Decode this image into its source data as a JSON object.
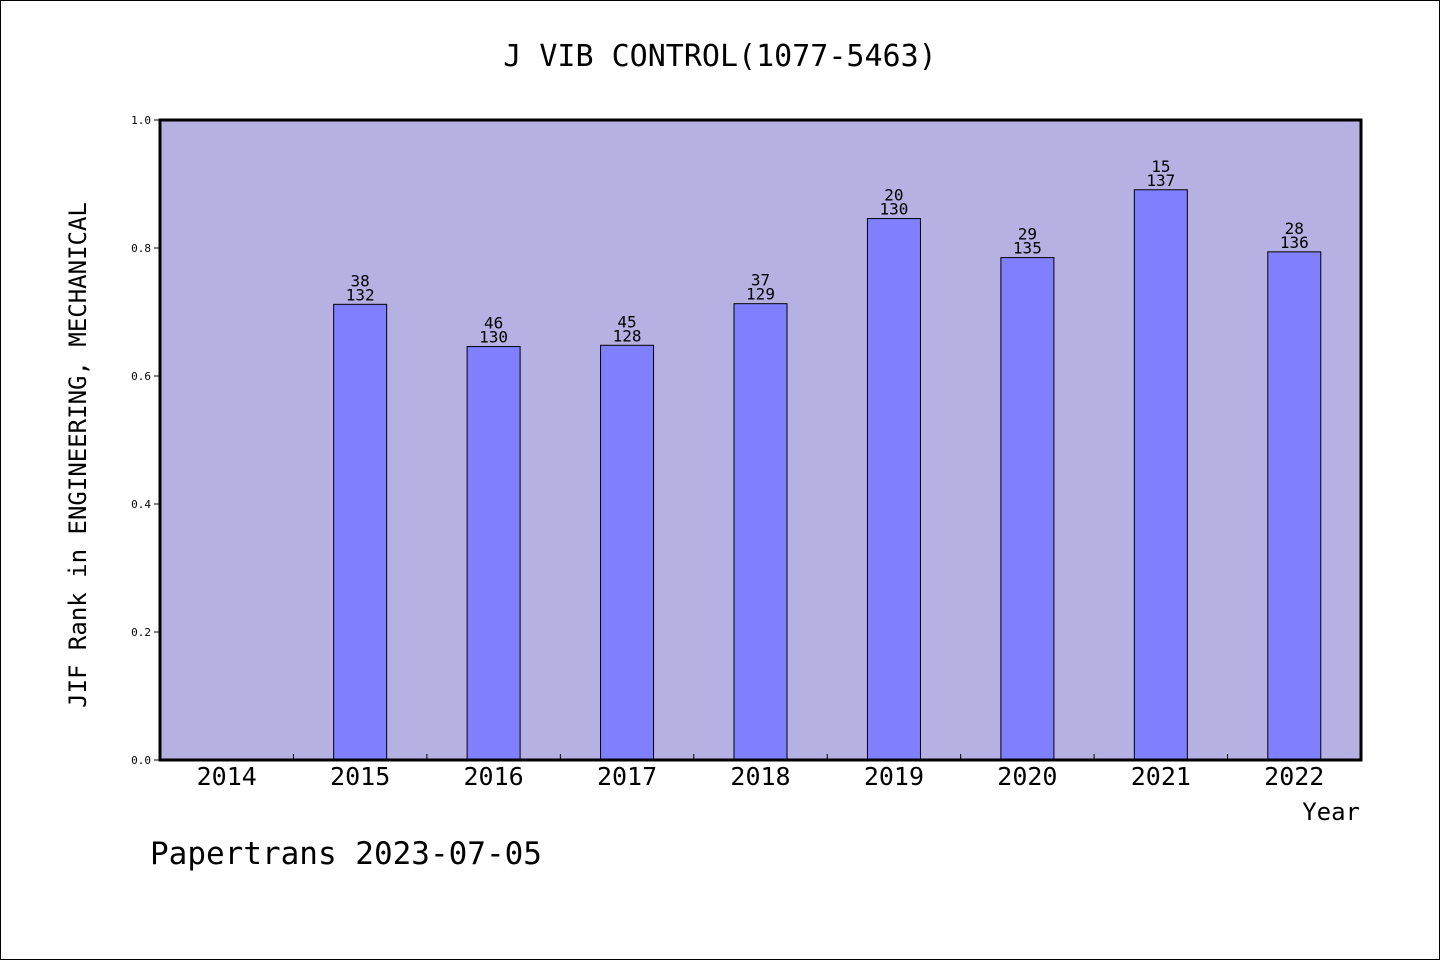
{
  "chart_data": {
    "type": "bar",
    "title": "J VIB CONTROL(1077-5463)",
    "xlabel": "Year",
    "ylabel": "JIF Rank in ENGINEERING, MECHANICAL",
    "ylim": [
      0,
      1.0
    ],
    "yticks": [
      "0.0",
      "0.2",
      "0.4",
      "0.6",
      "0.8",
      "1.0"
    ],
    "categories": [
      "2014",
      "2015",
      "2016",
      "2017",
      "2018",
      "2019",
      "2020",
      "2021",
      "2022"
    ],
    "values": [
      null,
      0.712,
      0.646,
      0.648,
      0.713,
      0.846,
      0.785,
      0.891,
      0.794
    ],
    "ranks": [
      "",
      "38",
      "46",
      "45",
      "37",
      "20",
      "29",
      "15",
      "28"
    ],
    "totals": [
      "",
      "132",
      "130",
      "128",
      "129",
      "130",
      "135",
      "137",
      "136"
    ],
    "grid": false,
    "colors": {
      "plot_bg": "#b6b1e3",
      "bar": "#8080ff",
      "bar_edge": "#000000"
    }
  },
  "footer": "Papertrans 2023-07-05"
}
